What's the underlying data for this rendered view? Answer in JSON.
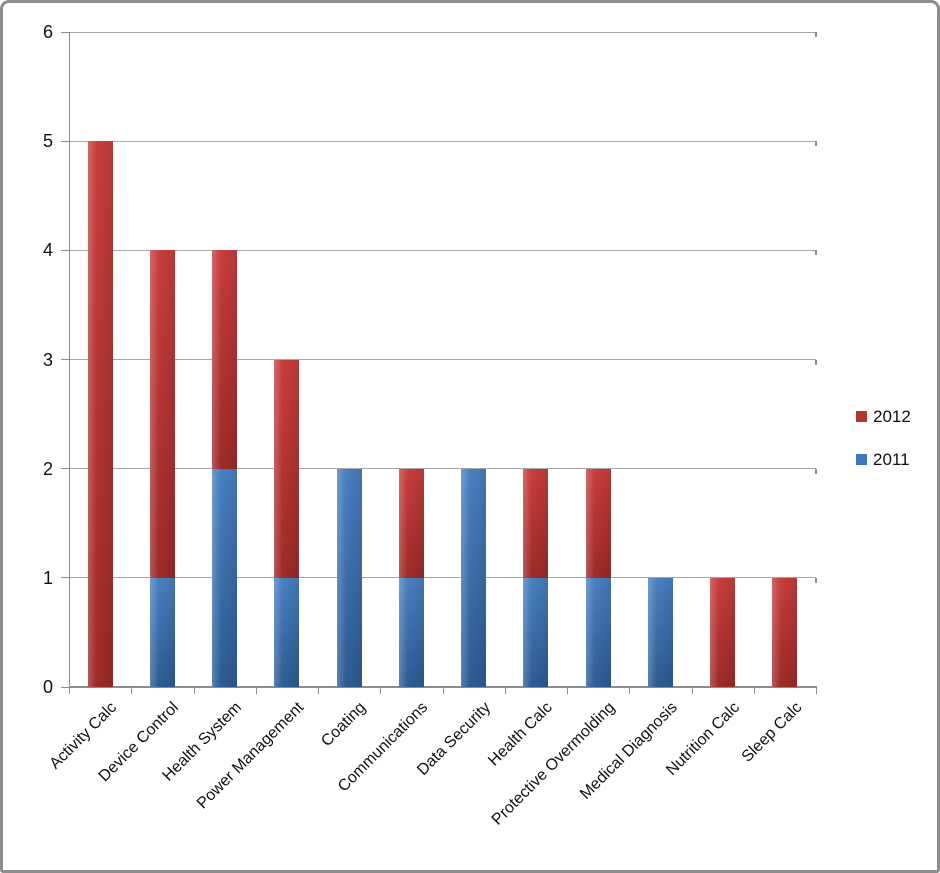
{
  "chart_data": {
    "type": "bar",
    "stacked": true,
    "title": "",
    "xlabel": "",
    "ylabel": "",
    "grid": true,
    "categories": [
      "Activity Calc",
      "Device Control",
      "Health System",
      "Power Management",
      "Coating",
      "Communications",
      "Data Security",
      "Health Calc",
      "Protective Overmolding",
      "Medical Diagnosis",
      "Nutrition Calc",
      "Sleep Calc"
    ],
    "series": [
      {
        "name": "2011",
        "color": "#3c78bb",
        "color_light": "#4a80c2",
        "color_dark": "#2d5c94",
        "values": [
          0,
          1,
          2,
          1,
          2,
          1,
          2,
          1,
          1,
          1,
          0,
          0
        ]
      },
      {
        "name": "2012",
        "color": "#b5342f",
        "color_light": "#c83e3d",
        "color_dark": "#9d2b29",
        "values": [
          5,
          3,
          2,
          2,
          0,
          1,
          0,
          1,
          1,
          0,
          1,
          1
        ]
      }
    ],
    "y_axis": {
      "min": 0,
      "max": 6,
      "tick_labels": [
        "0",
        "1",
        "2",
        "3",
        "4",
        "5",
        "6"
      ]
    },
    "legend": {
      "position": "right",
      "entries": [
        "2012",
        "2011"
      ]
    }
  }
}
